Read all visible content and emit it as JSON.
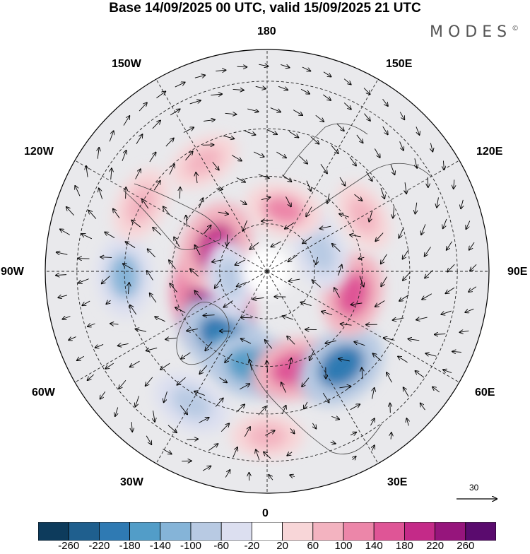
{
  "title": "Base 14/09/2025 00 UTC, valid 15/09/2025 21 UTC",
  "brand": {
    "name": "MODES",
    "mark": "©"
  },
  "longitude_labels": [
    {
      "id": "lon-180",
      "text": "180"
    },
    {
      "id": "lon-150e",
      "text": "150E"
    },
    {
      "id": "lon-120e",
      "text": "120E"
    },
    {
      "id": "lon-90e",
      "text": "90E"
    },
    {
      "id": "lon-60e",
      "text": "60E"
    },
    {
      "id": "lon-30e",
      "text": "30E"
    },
    {
      "id": "lon-0",
      "text": "0"
    },
    {
      "id": "lon-30w",
      "text": "30W"
    },
    {
      "id": "lon-60w",
      "text": "60W"
    },
    {
      "id": "lon-90w",
      "text": "90W"
    },
    {
      "id": "lon-120w",
      "text": "120W"
    },
    {
      "id": "lon-150w",
      "text": "150W"
    }
  ],
  "reference_vector": {
    "value": "30"
  },
  "colorbar": {
    "colors": [
      "#0d3b5c",
      "#1f5f8e",
      "#2f7ab3",
      "#529dc8",
      "#85b4d8",
      "#b8cae3",
      "#dcdff0",
      "#ffffff",
      "#f8d6d8",
      "#f3b3c0",
      "#ec86a9",
      "#df5596",
      "#c42a88",
      "#96157c",
      "#5a0b6e"
    ],
    "ticks": [
      "-260",
      "-220",
      "-180",
      "-140",
      "-100",
      "-60",
      "-20",
      "20",
      "60",
      "100",
      "140",
      "180",
      "220",
      "260"
    ]
  },
  "anomaly_cells": [
    {
      "lat": 70,
      "lon": -60,
      "value": 240
    },
    {
      "lat": 65,
      "lon": -35,
      "value": -200
    },
    {
      "lat": 60,
      "lon": -10,
      "value": -180
    },
    {
      "lat": 58,
      "lon": 15,
      "value": 150
    },
    {
      "lat": 52,
      "lon": 38,
      "value": -200
    },
    {
      "lat": 62,
      "lon": 75,
      "value": 140
    },
    {
      "lat": 72,
      "lon": 110,
      "value": -90
    },
    {
      "lat": 70,
      "lon": 165,
      "value": 100
    },
    {
      "lat": 72,
      "lon": -115,
      "value": 200
    },
    {
      "lat": 78,
      "lon": -80,
      "value": -80
    },
    {
      "lat": 45,
      "lon": -88,
      "value": -120
    },
    {
      "lat": 45,
      "lon": -118,
      "value": 80
    },
    {
      "lat": 50,
      "lon": -150,
      "value": 60
    },
    {
      "lat": 55,
      "lon": 120,
      "value": 60
    },
    {
      "lat": 42,
      "lon": -30,
      "value": -100
    },
    {
      "lat": 38,
      "lon": 0,
      "value": 60
    }
  ]
}
